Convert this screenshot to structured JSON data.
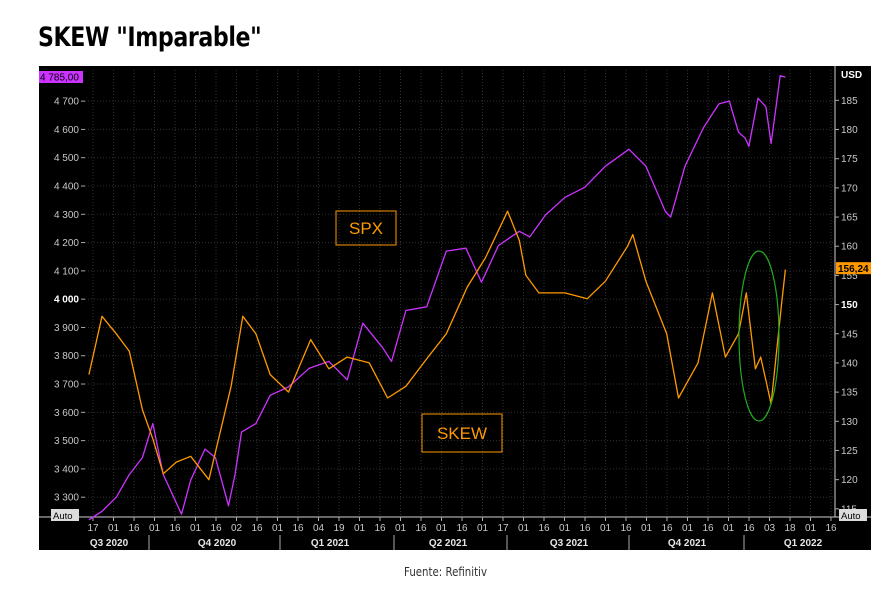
{
  "title": "SKEW \"Imparable\"",
  "source": "Fuente: Refinitiv",
  "chart_data": {
    "type": "line",
    "left_axis": {
      "ticks": [
        "4 700",
        "4 600",
        "4 500",
        "4 400",
        "4 300",
        "4 200",
        "4 100",
        "4 000",
        "3 900",
        "3 800",
        "3 700",
        "3 600",
        "3 500",
        "3 400",
        "3 300"
      ],
      "tick_values": [
        4700,
        4600,
        4500,
        4400,
        4300,
        4200,
        4100,
        4000,
        3900,
        3800,
        3700,
        3600,
        3500,
        3400,
        3300
      ],
      "range": [
        3230,
        4810
      ],
      "current_value_label": "4 785,00",
      "scale_label": "Auto"
    },
    "right_axis": {
      "unit": "USD",
      "ticks": [
        "185",
        "180",
        "175",
        "170",
        "165",
        "160",
        "155",
        "150",
        "145",
        "140",
        "135",
        "130",
        "125",
        "120",
        "115"
      ],
      "tick_values": [
        185,
        180,
        175,
        170,
        165,
        160,
        155,
        150,
        145,
        140,
        135,
        130,
        125,
        120,
        115
      ],
      "range": [
        113.6,
        190.2
      ],
      "current_value_label": "156,24",
      "scale_label": "Auto"
    },
    "x_axis": {
      "tick_labels": [
        "17",
        "01",
        "16",
        "01",
        "16",
        "01",
        "16",
        "02",
        "16",
        "01",
        "16",
        "04",
        "19",
        "01",
        "16",
        "01",
        "16",
        "01",
        "16",
        "01",
        "17",
        "01",
        "16",
        "01",
        "16",
        "01",
        "16",
        "01",
        "16",
        "01",
        "16",
        "01",
        "16",
        "03",
        "18",
        "01",
        "16"
      ],
      "quarters": [
        "Q3 2020",
        "Q4 2020",
        "Q1 2021",
        "Q2 2021",
        "Q3 2021",
        "Q4 2021",
        "Q1 2022"
      ]
    },
    "series": [
      {
        "name": "SPX",
        "axis": "left",
        "color": "#cc33ff",
        "x": [
          "2020-07-15",
          "2020-07-25",
          "2020-08-05",
          "2020-08-15",
          "2020-08-25",
          "2020-09-02",
          "2020-09-10",
          "2020-09-18",
          "2020-09-24",
          "2020-10-01",
          "2020-10-12",
          "2020-10-20",
          "2020-10-30",
          "2020-11-04",
          "2020-11-09",
          "2020-11-20",
          "2020-12-01",
          "2020-12-15",
          "2020-12-31",
          "2021-01-15",
          "2021-01-29",
          "2021-02-10",
          "2021-02-25",
          "2021-03-04",
          "2021-03-15",
          "2021-03-31",
          "2021-04-15",
          "2021-04-30",
          "2021-05-12",
          "2021-05-25",
          "2021-06-10",
          "2021-06-18",
          "2021-06-30",
          "2021-07-15",
          "2021-07-30",
          "2021-08-15",
          "2021-08-31",
          "2021-09-02",
          "2021-09-15",
          "2021-09-30",
          "2021-10-04",
          "2021-10-15",
          "2021-10-29",
          "2021-11-10",
          "2021-11-18",
          "2021-11-25",
          "2021-11-30",
          "2021-12-03",
          "2021-12-10",
          "2021-12-16",
          "2021-12-20",
          "2021-12-27",
          "2021-12-31"
        ],
        "values": [
          3220,
          3250,
          3300,
          3380,
          3440,
          3560,
          3380,
          3300,
          3240,
          3360,
          3470,
          3440,
          3270,
          3380,
          3530,
          3560,
          3660,
          3690,
          3756,
          3780,
          3715,
          3915,
          3830,
          3780,
          3960,
          3973,
          4170,
          4180,
          4060,
          4190,
          4240,
          4220,
          4297,
          4360,
          4395,
          4470,
          4523,
          4530,
          4470,
          4310,
          4290,
          4470,
          4605,
          4690,
          4700,
          4590,
          4570,
          4540,
          4710,
          4680,
          4550,
          4790,
          4785
        ]
      },
      {
        "name": "SKEW",
        "axis": "right",
        "color": "#ff9900",
        "x": [
          "2020-07-15",
          "2020-07-25",
          "2020-08-05",
          "2020-08-15",
          "2020-08-25",
          "2020-09-02",
          "2020-09-10",
          "2020-09-20",
          "2020-10-01",
          "2020-10-15",
          "2020-11-01",
          "2020-11-10",
          "2020-11-20",
          "2020-12-01",
          "2020-12-15",
          "2021-01-01",
          "2021-01-15",
          "2021-01-29",
          "2021-02-15",
          "2021-03-01",
          "2021-03-15",
          "2021-04-01",
          "2021-04-15",
          "2021-05-01",
          "2021-05-15",
          "2021-06-01",
          "2021-06-10",
          "2021-06-15",
          "2021-06-25",
          "2021-07-15",
          "2021-08-01",
          "2021-08-15",
          "2021-09-01",
          "2021-09-05",
          "2021-09-15",
          "2021-10-01",
          "2021-10-10",
          "2021-10-25",
          "2021-11-05",
          "2021-11-15",
          "2021-11-25",
          "2021-12-01",
          "2021-12-08",
          "2021-12-12",
          "2021-12-20",
          "2021-12-28",
          "2021-12-31"
        ],
        "values": [
          138,
          148,
          145,
          142,
          132,
          127,
          121,
          123,
          124,
          120,
          136,
          148,
          145,
          138,
          135,
          144,
          139,
          141,
          140,
          134,
          136,
          141,
          145,
          153,
          158,
          166,
          161,
          155,
          152,
          152,
          151,
          154,
          160,
          162,
          154,
          145,
          134,
          140,
          152,
          141,
          145,
          152,
          139,
          141,
          133,
          150,
          156
        ]
      }
    ],
    "annotations": [
      "SPX",
      "SKEW"
    ]
  }
}
